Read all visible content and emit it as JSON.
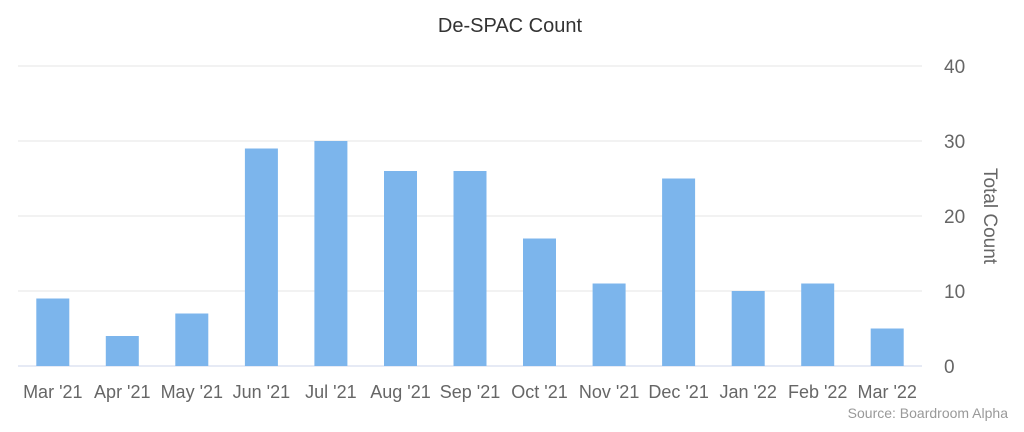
{
  "chart_data": {
    "type": "bar",
    "title": "De-SPAC Count",
    "categories": [
      "Mar '21",
      "Apr '21",
      "May '21",
      "Jun '21",
      "Jul '21",
      "Aug '21",
      "Sep '21",
      "Oct '21",
      "Nov '21",
      "Dec '21",
      "Jan '22",
      "Feb '22",
      "Mar '22"
    ],
    "values": [
      9,
      4,
      7,
      29,
      30,
      26,
      26,
      17,
      11,
      25,
      10,
      11,
      5
    ],
    "xlabel": "",
    "ylabel": "Total Count",
    "ylim": [
      0,
      40
    ],
    "yticks": [
      0,
      10,
      20,
      30,
      40
    ],
    "y_axis_side": "right",
    "grid": true,
    "bar_color": "#7cb5ec",
    "credits": "Source: Boardroom Alpha"
  }
}
